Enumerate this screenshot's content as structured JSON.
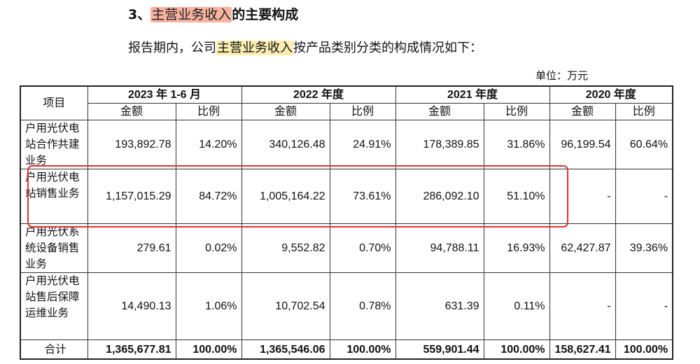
{
  "heading": {
    "prefix": "3、",
    "highlight": "主营业务收入",
    "suffix": "的主要构成"
  },
  "paragraph": {
    "prefix": "报告期内，公司",
    "highlight": "主营业务收入",
    "suffix": "按产品类别分类的构成情况如下："
  },
  "unit": "单位：万元",
  "table": {
    "item_header": "项目",
    "years": [
      "2023 年 1-6 月",
      "2022 年度",
      "2021 年度",
      "2020 年度"
    ],
    "sub_amount": "金额",
    "sub_ratio": "比例",
    "rows": [
      {
        "label": "户用光伏电站合作共建业务",
        "cells": [
          "193,892.78",
          "14.20%",
          "340,126.48",
          "24.91%",
          "178,389.85",
          "31.86%",
          "96,199.54",
          "60.64%"
        ]
      },
      {
        "label": "户用光伏电站销售业务",
        "cells": [
          "1,157,015.29",
          "84.72%",
          "1,005,164.22",
          "73.61%",
          "286,092.10",
          "51.10%",
          "-",
          "-"
        ]
      },
      {
        "label": "户用光伏系统设备销售业务",
        "cells": [
          "279.61",
          "0.02%",
          "9,552.82",
          "0.70%",
          "94,788.11",
          "16.93%",
          "62,427.87",
          "39.36%"
        ]
      },
      {
        "label": "户用光伏电站售后保障运维业务",
        "cells": [
          "14,490.13",
          "1.06%",
          "10,702.54",
          "0.78%",
          "631.39",
          "0.11%",
          "-",
          "-"
        ]
      }
    ],
    "total": {
      "label": "合计",
      "cells": [
        "1,365,677.81",
        "100.00%",
        "1,365,546.06",
        "100.00%",
        "559,901.44",
        "100.00%",
        "158,627.41",
        "100.00%"
      ]
    }
  },
  "colors": {
    "highlight_strong": "#f7b3a0",
    "highlight_soft": "#fbeeb0",
    "box": "#e03131"
  }
}
